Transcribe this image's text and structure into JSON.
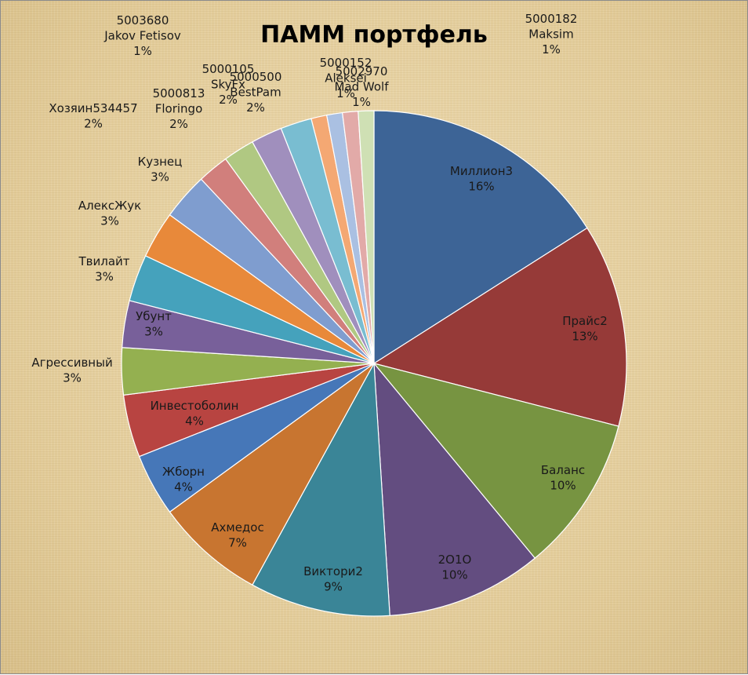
{
  "chart_data": {
    "type": "pie",
    "title": "ПАММ портфель",
    "slices": [
      {
        "name": "Миллион3",
        "value": 16,
        "label": "16%",
        "color": "#3d6496"
      },
      {
        "name": "Прайс2",
        "value": 13,
        "label": "13%",
        "color": "#963a38"
      },
      {
        "name": "Баланс",
        "value": 10,
        "label": "10%",
        "color": "#779441"
      },
      {
        "name": "2О1О",
        "value": 10,
        "label": "10%",
        "color": "#634d80"
      },
      {
        "name": "Виктори2",
        "value": 9,
        "label": "9%",
        "color": "#3a8597"
      },
      {
        "name": "Ахмедос",
        "value": 7,
        "label": "7%",
        "color": "#c87530"
      },
      {
        "name": "Жборн",
        "value": 4,
        "label": "4%",
        "color": "#4677b8"
      },
      {
        "name": "Инвестоболин",
        "value": 4,
        "label": "4%",
        "color": "#b84441"
      },
      {
        "name": "Агрессивный",
        "value": 3,
        "label": "3%",
        "color": "#94b050"
      },
      {
        "name": "Убунт",
        "value": 3,
        "label": "3%",
        "color": "#78609a"
      },
      {
        "name": "Твилайт",
        "value": 3,
        "label": "3%",
        "color": "#45a2bc"
      },
      {
        "name": "АлексЖук",
        "value": 3,
        "label": "3%",
        "color": "#e8893a"
      },
      {
        "name": "Кузнец",
        "value": 3,
        "label": "3%",
        "color": "#7f9dcf"
      },
      {
        "name": "Хозяин534457",
        "value": 2,
        "label": "2%",
        "color": "#d17f7c"
      },
      {
        "name": "5000813 Floringo",
        "value": 2,
        "label": "2%",
        "color": "#b0c882"
      },
      {
        "name": "5000500 BestPam",
        "value": 2,
        "label": "2%",
        "color": "#a08fbd"
      },
      {
        "name": "5000105 SkyFx",
        "value": 2,
        "label": "2%",
        "color": "#79bdd1"
      },
      {
        "name": "5003680 Jakov Fetisov",
        "value": 1,
        "label": "1%",
        "color": "#f4a873"
      },
      {
        "name": "5000152 Aleksei",
        "value": 1,
        "label": "1%",
        "color": "#aac0e2"
      },
      {
        "name": "5002970 Mad Wolf",
        "value": 1,
        "label": "1%",
        "color": "#e2aaa8"
      },
      {
        "name": "5000182 Maksim",
        "value": 1,
        "label": "1%",
        "color": "#cfe0b4"
      }
    ]
  }
}
